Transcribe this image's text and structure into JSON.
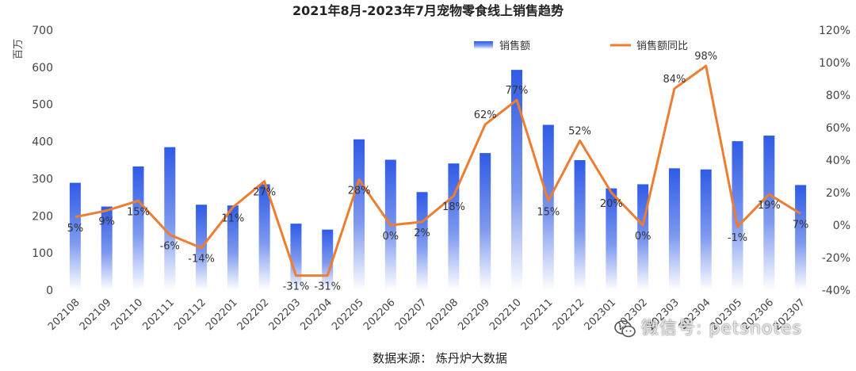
{
  "chart_data": {
    "type": "bar+line",
    "title": "2021年8月-2023年7月宠物零食线上销售趋势",
    "y_unit_label": "百万",
    "categories": [
      "202108",
      "202109",
      "202110",
      "202111",
      "202112",
      "202201",
      "202202",
      "202203",
      "202204",
      "202205",
      "202206",
      "202207",
      "202208",
      "202209",
      "202210",
      "202211",
      "202212",
      "202301",
      "202302",
      "202303",
      "202304",
      "202305",
      "202306",
      "202307"
    ],
    "series": [
      {
        "name": "销售额",
        "type": "bar",
        "axis": "left",
        "values": [
          289,
          225,
          333,
          385,
          230,
          228,
          285,
          179,
          163,
          406,
          351,
          264,
          341,
          369,
          593,
          445,
          350,
          274,
          285,
          328,
          325,
          401,
          416,
          283
        ]
      },
      {
        "name": "销售额同比",
        "type": "line",
        "axis": "right",
        "values": [
          5,
          9,
          15,
          -6,
          -14,
          11,
          27,
          -31,
          -31,
          28,
          0,
          2,
          18,
          62,
          77,
          15,
          52,
          20,
          0,
          84,
          98,
          -1,
          19,
          7
        ],
        "labels": [
          "5%",
          "9%",
          "15%",
          "-6%",
          "-14%",
          "11%",
          "27%",
          "-31%",
          "-31%",
          "28%",
          "0%",
          "2%",
          "18%",
          "62%",
          "77%",
          "15%",
          "52%",
          "20%",
          "0%",
          "84%",
          "98%",
          "-1%",
          "19%",
          "7%"
        ]
      }
    ],
    "y_left": {
      "min": 0,
      "max": 700,
      "ticks": [
        "0",
        "100",
        "200",
        "300",
        "400",
        "500",
        "600",
        "700"
      ]
    },
    "y_right": {
      "min": -40,
      "max": 120,
      "ticks": [
        "-40%",
        "-20%",
        "0%",
        "20%",
        "40%",
        "60%",
        "80%",
        "100%",
        "120%"
      ]
    },
    "legend_position": "top-right",
    "grid": false,
    "source": "数据来源：  炼丹炉大数据",
    "watermark": "微信号: petsnotes",
    "colors": {
      "bar_top": "#2f5be6",
      "bar_bottom": "#ffffff",
      "line": "#ed7d31",
      "text": "#333333"
    }
  }
}
